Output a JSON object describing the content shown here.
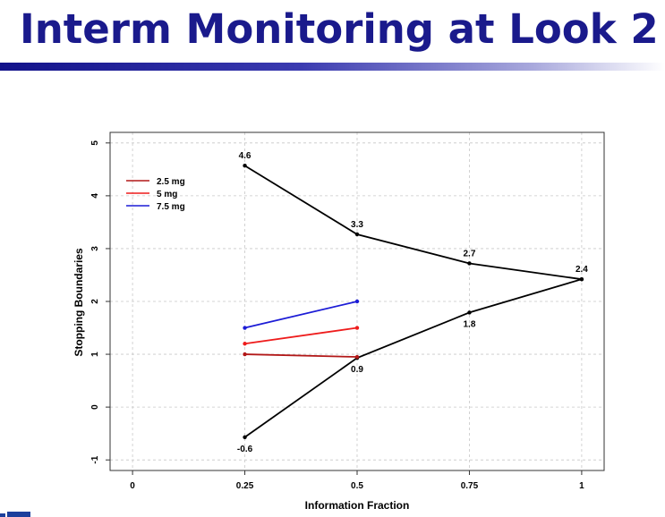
{
  "slide": {
    "title": "Interm Monitoring at Look 2"
  },
  "chart_data": {
    "type": "line",
    "title": "",
    "xlabel": "Information Fraction",
    "ylabel": "Stopping Boundaries",
    "xlim": [
      -0.05,
      1.05
    ],
    "ylim": [
      -1.2,
      5.2
    ],
    "x_ticks": [
      0,
      0.25,
      0.5,
      0.75,
      1
    ],
    "x_tick_labels": [
      "0",
      "0.25",
      "0.5",
      "0.75",
      "1"
    ],
    "y_ticks": [
      -1,
      0,
      1,
      2,
      3,
      4,
      5
    ],
    "y_tick_labels": [
      "-1",
      "0",
      "1",
      "2",
      "3",
      "4",
      "5"
    ],
    "grid": true,
    "legend_position": "top-left",
    "boundaries": [
      {
        "kind": "upper",
        "color": "#000000",
        "points": [
          [
            0.25,
            4.57
          ],
          [
            0.5,
            3.27
          ],
          [
            0.75,
            2.72
          ],
          [
            1,
            2.42
          ]
        ],
        "labels": [
          "4.6",
          "3.3",
          "2.7",
          "2.4"
        ],
        "label_position": "above"
      },
      {
        "kind": "lower",
        "color": "#000000",
        "points": [
          [
            0.25,
            -0.57
          ],
          [
            0.5,
            0.93
          ],
          [
            0.75,
            1.79
          ],
          [
            1,
            2.42
          ]
        ],
        "labels": [
          "-0.6",
          "0.9",
          "1.8",
          ""
        ],
        "label_position": "below"
      }
    ],
    "series": [
      {
        "name": "2.5 mg",
        "color": "#b21818",
        "x": [
          0.25,
          0.5
        ],
        "y": [
          1.0,
          0.95
        ]
      },
      {
        "name": "5 mg",
        "color": "#ee1c1c",
        "x": [
          0.25,
          0.5
        ],
        "y": [
          1.2,
          1.5
        ]
      },
      {
        "name": "7.5 mg",
        "color": "#1c1cd6",
        "x": [
          0.25,
          0.5
        ],
        "y": [
          1.5,
          2.0
        ]
      }
    ]
  }
}
